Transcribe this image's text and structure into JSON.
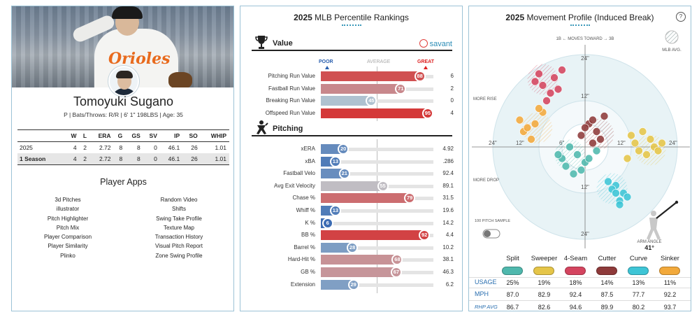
{
  "player": {
    "name": "Tomoyuki Sugano",
    "bio": "P | Bats/Throws: R/R | 6' 1\" 198LBS | Age: 35",
    "jersey_text": "Orioles"
  },
  "stats": {
    "headers": [
      "",
      "W",
      "L",
      "ERA",
      "G",
      "GS",
      "SV",
      "IP",
      "SO",
      "WHIP"
    ],
    "rows": [
      [
        "2025",
        "4",
        "2",
        "2.72",
        "8",
        "8",
        "0",
        "46.1",
        "26",
        "1.01"
      ],
      [
        "1 Season",
        "4",
        "2",
        "2.72",
        "8",
        "8",
        "0",
        "46.1",
        "26",
        "1.01"
      ]
    ]
  },
  "apps": {
    "title": "Player Apps",
    "left": [
      "3d Pitches",
      "illustrator",
      "Pitch Highlighter",
      "Pitch Mix",
      "Player Comparison",
      "Player Similarity",
      "Plinko"
    ],
    "right": [
      "Random Video",
      "Shifts",
      "Swing Take Profile",
      "Texture Map",
      "Transaction History",
      "Visual Pitch Report",
      "Zone Swing Profile"
    ]
  },
  "percentile": {
    "title_year": "2025",
    "title_rest": "MLB Percentile Rankings",
    "savant_label": "savant",
    "scale": {
      "poor": "POOR",
      "average": "AVERAGE",
      "great": "GREAT"
    },
    "value_section": "Value",
    "pitching_section": "Pitching",
    "value_rows": [
      {
        "label": "Pitching Run Value",
        "pct": 88,
        "value": "6"
      },
      {
        "label": "Fastball Run Value",
        "pct": 71,
        "value": "2"
      },
      {
        "label": "Breaking Run Value",
        "pct": 45,
        "value": "0"
      },
      {
        "label": "Offspeed Run Value",
        "pct": 95,
        "value": "4"
      }
    ],
    "pitching_rows": [
      {
        "label": "xERA",
        "pct": 20,
        "value": "4.92"
      },
      {
        "label": "xBA",
        "pct": 13,
        "value": ".286"
      },
      {
        "label": "Fastball Velo",
        "pct": 21,
        "value": "92.4"
      },
      {
        "label": "Avg Exit Velocity",
        "pct": 55,
        "value": "89.1"
      },
      {
        "label": "Chase %",
        "pct": 79,
        "value": "31.5"
      },
      {
        "label": "Whiff %",
        "pct": 13,
        "value": "19.6"
      },
      {
        "label": "K %",
        "pct": 6,
        "value": "14.2"
      },
      {
        "label": "BB %",
        "pct": 92,
        "value": "4.4"
      },
      {
        "label": "Barrel %",
        "pct": 28,
        "value": "10.2"
      },
      {
        "label": "Hard-Hit %",
        "pct": 68,
        "value": "38.1"
      },
      {
        "label": "GB %",
        "pct": 67,
        "value": "46.3"
      },
      {
        "label": "Extension",
        "pct": 29,
        "value": "6.2"
      }
    ]
  },
  "movement": {
    "title_year": "2025",
    "title_rest": "Movement Profile (Induced Break)",
    "help": "?",
    "moves_toward": "1B ← MOVES TOWARD → 3B",
    "mlb_avg": "MLB AVG.",
    "more_rise": "MORE RISE",
    "more_drop": "MORE DROP",
    "ring_labels": [
      "24\"",
      "12\"",
      "6\""
    ],
    "sample_label": "100 PITCH SAMPLE",
    "arm_angle_label": "ARM ANGLE",
    "arm_angle": "41°",
    "row_labels": {
      "usage": "USAGE",
      "mph": "MPH",
      "rhp": "RHP AVG"
    },
    "pitches": [
      {
        "name": "Split",
        "color": "#4fb8ad",
        "usage": "25%",
        "mph": "87.0",
        "rhp": "86.7"
      },
      {
        "name": "Sweeper",
        "color": "#e5c548",
        "usage": "19%",
        "mph": "82.9",
        "rhp": "82.6"
      },
      {
        "name": "4-Seam",
        "color": "#d4445f",
        "usage": "18%",
        "mph": "92.4",
        "rhp": "94.6"
      },
      {
        "name": "Cutter",
        "color": "#8e3a3a",
        "usage": "14%",
        "mph": "87.5",
        "rhp": "89.9"
      },
      {
        "name": "Curve",
        "color": "#3ec5d6",
        "usage": "13%",
        "mph": "77.7",
        "rhp": "80.2"
      },
      {
        "name": "Sinker",
        "color": "#f2a93b",
        "usage": "11%",
        "mph": "92.2",
        "rhp": "93.7"
      }
    ]
  },
  "chart_data": [
    {
      "type": "bar",
      "title": "2025 MLB Percentile Rankings",
      "categories": [
        "Pitching Run Value",
        "Fastball Run Value",
        "Breaking Run Value",
        "Offspeed Run Value",
        "xERA",
        "xBA",
        "Fastball Velo",
        "Avg Exit Velocity",
        "Chase %",
        "Whiff %",
        "K %",
        "BB %",
        "Barrel %",
        "Hard-Hit %",
        "GB %",
        "Extension"
      ],
      "values": [
        88,
        71,
        45,
        95,
        20,
        13,
        21,
        55,
        79,
        13,
        6,
        92,
        28,
        68,
        67,
        29
      ],
      "ylim": [
        0,
        100
      ]
    },
    {
      "type": "scatter",
      "title": "2025 Movement Profile (Induced Break)",
      "series": [
        {
          "name": "Split",
          "x": [
            -2,
            -4,
            0,
            -6,
            -1,
            3,
            -3,
            -5,
            -7,
            1
          ],
          "y": [
            -2,
            0,
            -4,
            -3,
            -6,
            -1,
            -7,
            -5,
            -2,
            -3
          ]
        },
        {
          "name": "Sweeper",
          "x": [
            17,
            14,
            20,
            12,
            16,
            18,
            11,
            15,
            13,
            19
          ],
          "y": [
            2,
            -1,
            1,
            3,
            -2,
            0,
            -3,
            4,
            1,
            -1
          ]
        },
        {
          "name": "4-Seam",
          "x": [
            -8,
            -11,
            -6,
            -9,
            -13,
            -10,
            -7,
            -12
          ],
          "y": [
            18,
            16,
            20,
            14,
            17,
            12,
            15,
            19
          ]
        },
        {
          "name": "Cutter",
          "x": [
            1,
            3,
            -1,
            2,
            0,
            4,
            5,
            2
          ],
          "y": [
            6,
            4,
            3,
            7,
            5,
            2,
            8,
            1
          ]
        },
        {
          "name": "Curve",
          "x": [
            8,
            10,
            6,
            9,
            7,
            11,
            9,
            8
          ],
          "y": [
            -10,
            -12,
            -9,
            -14,
            -11,
            -13,
            -15,
            -12
          ]
        },
        {
          "name": "Sinker",
          "x": [
            -13,
            -16,
            -11,
            -14,
            -17,
            -12,
            -15
          ],
          "y": [
            6,
            4,
            9,
            2,
            7,
            10,
            5
          ]
        }
      ]
    }
  ]
}
